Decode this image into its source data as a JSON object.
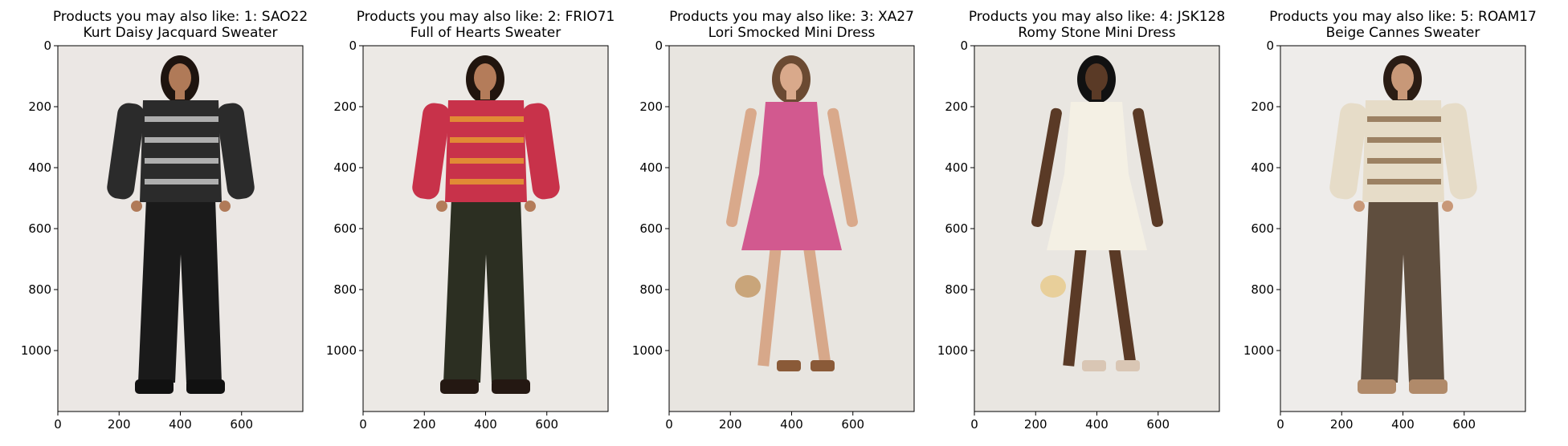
{
  "chart_data": [
    {
      "type": "image",
      "title_line1": "Products you may also like: 1: SAO22",
      "title_line2": "Kurt Daisy Jacquard Sweater",
      "x_ticks": [
        0,
        200,
        400,
        600
      ],
      "y_ticks": [
        0,
        200,
        400,
        600,
        800,
        1000
      ],
      "xlim": [
        0,
        800
      ],
      "ylim": [
        1200,
        0
      ],
      "image": {
        "background": "#ebe7e4",
        "garment": "black floral jacquard sweater",
        "garment_color": "#2b2b2b",
        "accent_color": "#cfcfcf",
        "legwear": "black leather pants",
        "legwear_color": "#1a1a1a",
        "footwear_color": "#111111",
        "skin_color": "#b07a58",
        "hair_color": "#1e140f"
      }
    },
    {
      "type": "image",
      "title_line1": "Products you may also like: 2: FRIO71",
      "title_line2": "Full of Hearts Sweater",
      "x_ticks": [
        0,
        200,
        400,
        600
      ],
      "y_ticks": [
        0,
        200,
        400,
        600,
        800,
        1000
      ],
      "xlim": [
        0,
        800
      ],
      "ylim": [
        1200,
        0
      ],
      "image": {
        "background": "#ece9e5",
        "garment": "red and pink hearts sweater",
        "garment_color": "#c8324a",
        "accent_color": "#e7a030",
        "legwear": "dark olive trousers",
        "legwear_color": "#2c2f22",
        "footwear_color": "#241812",
        "skin_color": "#b47c5a",
        "hair_color": "#21150e"
      }
    },
    {
      "type": "image",
      "title_line1": "Products you may also like: 3: XA27",
      "title_line2": "Lori Smocked Mini Dress",
      "x_ticks": [
        0,
        200,
        400,
        600
      ],
      "y_ticks": [
        0,
        200,
        400,
        600,
        800,
        1000
      ],
      "xlim": [
        0,
        800
      ],
      "ylim": [
        1200,
        0
      ],
      "image": {
        "background": "#e8e5e0",
        "garment": "pink smocked mini dress",
        "garment_color": "#d2598f",
        "accent_color": "#c9a57a",
        "legwear": "",
        "legwear_color": "#d7a88a",
        "footwear_color": "#8a5a38",
        "skin_color": "#d9a98b",
        "hair_color": "#6b4a32"
      }
    },
    {
      "type": "image",
      "title_line1": "Products you may also like: 4: JSK128",
      "title_line2": "Romy Stone Mini Dress",
      "x_ticks": [
        0,
        200,
        400,
        600
      ],
      "y_ticks": [
        0,
        200,
        400,
        600,
        800,
        1000
      ],
      "xlim": [
        0,
        800
      ],
      "ylim": [
        1200,
        0
      ],
      "image": {
        "background": "#e9e6e1",
        "garment": "white stone mini dress",
        "garment_color": "#f4f0e4",
        "accent_color": "#e8cf9a",
        "legwear": "",
        "legwear_color": "#5a3a26",
        "footwear_color": "#d9c6b4",
        "skin_color": "#5a3a26",
        "hair_color": "#111111"
      }
    },
    {
      "type": "image",
      "title_line1": "Products you may also like: 5: ROAM17",
      "title_line2": "Beige Cannes Sweater",
      "x_ticks": [
        0,
        200,
        400,
        600
      ],
      "y_ticks": [
        0,
        200,
        400,
        600,
        800,
        1000
      ],
      "xlim": [
        0,
        800
      ],
      "ylim": [
        1200,
        0
      ],
      "image": {
        "background": "#eeecea",
        "garment": "beige cannes sweater",
        "garment_color": "#e6dcc8",
        "accent_color": "#8a6a4a",
        "legwear": "brown wide-leg trousers",
        "legwear_color": "#5f4e3e",
        "footwear_color": "#b08a6a",
        "skin_color": "#c89878",
        "hair_color": "#2a1c14"
      }
    }
  ]
}
